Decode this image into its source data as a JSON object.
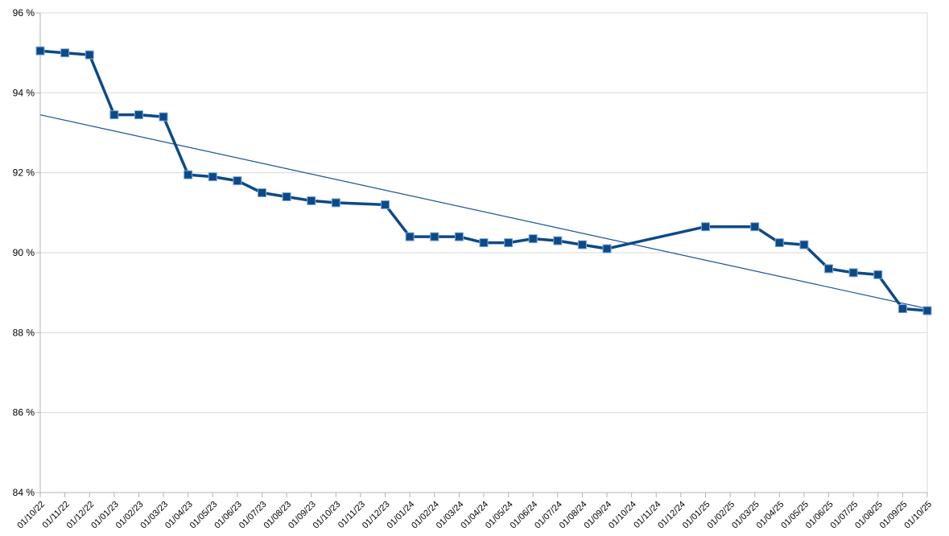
{
  "chart_data": {
    "type": "line",
    "title": "",
    "legend": "none",
    "grid": "horizontal",
    "ylim": [
      84,
      96
    ],
    "ytick_step": 2,
    "y_ticks": [
      {
        "value": 96,
        "label": "96 %"
      },
      {
        "value": 94,
        "label": "94 %"
      },
      {
        "value": 92,
        "label": "92 %"
      },
      {
        "value": 90,
        "label": "90 %"
      },
      {
        "value": 88,
        "label": "88 %"
      },
      {
        "value": 86,
        "label": "86 %"
      },
      {
        "value": 84,
        "label": "84 %"
      }
    ],
    "x_labels": [
      "01/10/22",
      "01/11/22",
      "01/12/22",
      "01/01/23",
      "01/02/23",
      "01/03/23",
      "01/04/23",
      "01/05/23",
      "01/06/23",
      "01/07/23",
      "01/08/23",
      "01/09/23",
      "01/10/23",
      "01/11/23",
      "01/12/23",
      "01/01/24",
      "01/02/24",
      "01/03/24",
      "01/04/24",
      "01/05/24",
      "01/06/24",
      "01/07/24",
      "01/08/24",
      "01/09/24",
      "01/10/24",
      "01/11/24",
      "01/12/24",
      "01/01/25",
      "01/02/25",
      "01/03/25",
      "01/04/25",
      "01/05/25",
      "01/06/25",
      "01/07/25",
      "01/08/25",
      "01/09/25",
      "01/10/25"
    ],
    "series": [
      {
        "values": [
          95.05,
          95.0,
          94.95,
          93.45,
          93.45,
          93.4,
          91.95,
          91.9,
          91.8,
          91.5,
          91.4,
          91.3,
          91.25,
          null,
          91.2,
          90.4,
          90.4,
          90.4,
          90.25,
          90.25,
          90.35,
          90.3,
          90.2,
          90.1,
          null,
          null,
          null,
          90.65,
          null,
          90.65,
          90.25,
          90.2,
          89.6,
          89.5,
          89.45,
          88.6,
          88.55
        ]
      }
    ],
    "trend": {
      "start": 93.45,
      "end": 88.6
    },
    "colors": {
      "series": "#0c4a87",
      "marker_border": "#7da7d9",
      "trend": "#17549b",
      "gridline": "#d9d9d9",
      "axis": "#b3b3b3",
      "text": "#000000",
      "background": "#ffffff"
    }
  }
}
